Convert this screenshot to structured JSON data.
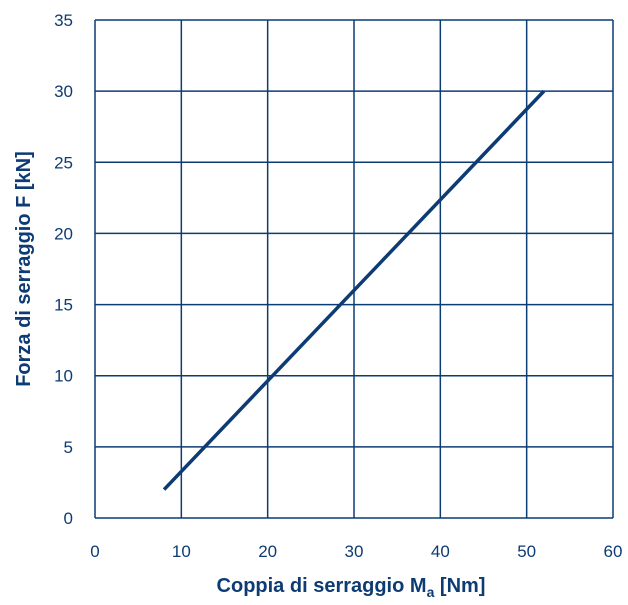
{
  "chart_data": {
    "type": "line",
    "title": "",
    "xlabel": {
      "main": "Coppia di serraggio M",
      "subscript": "a",
      "unit": " [Nm]"
    },
    "ylabel": "Forza di serraggio F [kN]",
    "xlim": [
      0,
      60
    ],
    "ylim": [
      0,
      35
    ],
    "xticks": [
      0,
      10,
      20,
      30,
      40,
      50,
      60
    ],
    "yticks": [
      0,
      5,
      10,
      15,
      20,
      25,
      30,
      35
    ],
    "grid": true,
    "legend": "none",
    "series": [
      {
        "x": [
          8,
          52
        ],
        "y": [
          2,
          30
        ]
      }
    ],
    "colors": {
      "grid": "#0d3b73",
      "line": "#0d3b73",
      "text": "#0d3b73"
    }
  }
}
